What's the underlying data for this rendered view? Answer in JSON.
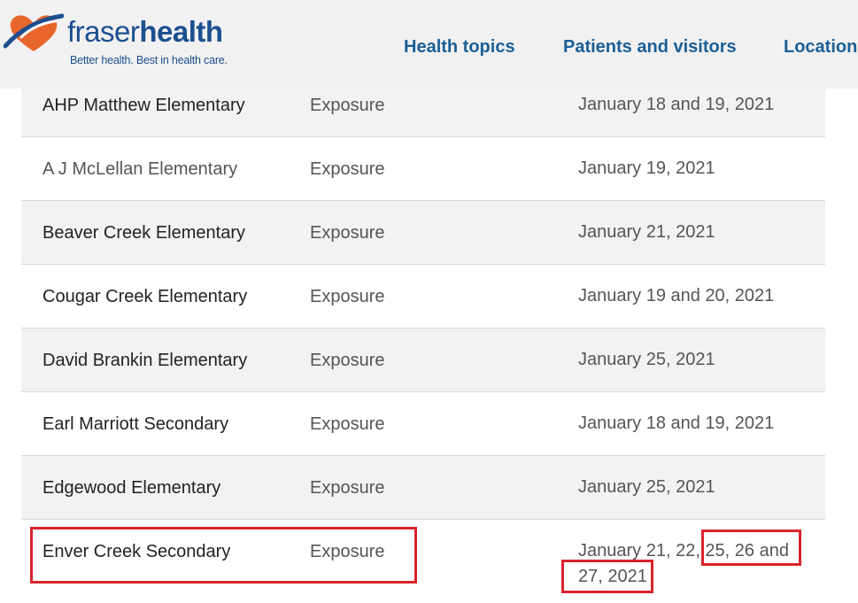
{
  "header": {
    "logo_word_light": "fraser",
    "logo_word_bold": "health",
    "tagline": "Better health. Best in health care.",
    "nav": [
      "Health topics",
      "Patients and visitors",
      "Locations"
    ]
  },
  "table": {
    "rows": [
      {
        "name": "AHP Matthew Elementary",
        "type": "Exposure",
        "date": "January 18 and 19, 2021"
      },
      {
        "name": "A J McLellan Elementary",
        "type": "Exposure",
        "date": "January 19, 2021"
      },
      {
        "name": "Beaver Creek Elementary",
        "type": "Exposure",
        "date": "January 21, 2021"
      },
      {
        "name": "Cougar Creek Elementary",
        "type": "Exposure",
        "date": "January 19 and 20,  2021"
      },
      {
        "name": "David Brankin Elementary",
        "type": "Exposure",
        "date": "January 25, 2021"
      },
      {
        "name": "Earl Marriott Secondary",
        "type": "Exposure",
        "date": "January 18 and 19, 2021"
      },
      {
        "name": "Edgewood Elementary",
        "type": "Exposure",
        "date": "January 25, 2021"
      },
      {
        "name": "Enver Creek Secondary",
        "type": "Exposure",
        "date": "January 21, 22, 25, 26 and 27, 2021"
      }
    ]
  },
  "colors": {
    "brand_blue": "#1b4f8f",
    "brand_orange": "#e8662c",
    "highlight_red": "#d9232e"
  }
}
